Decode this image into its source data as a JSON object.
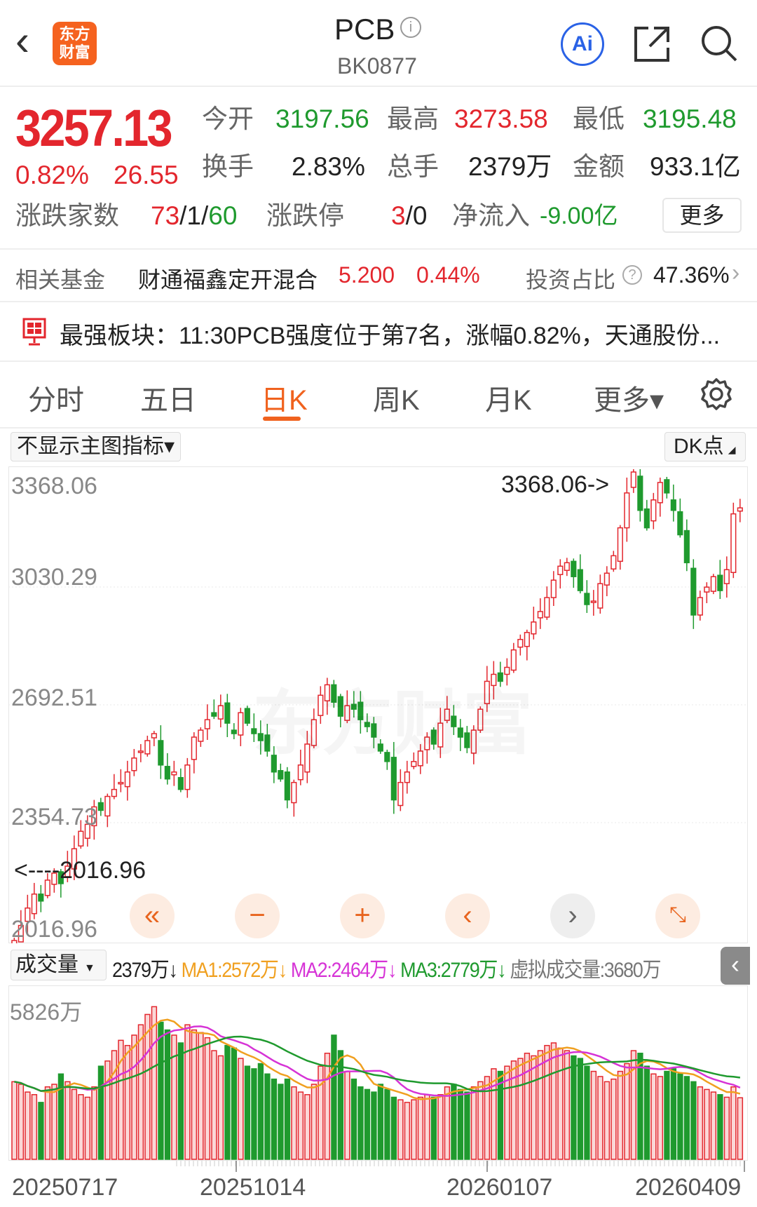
{
  "header": {
    "title": "PCB",
    "code": "BK0877",
    "logo_text": "东方财富",
    "ai_label": "Ai",
    "icons": [
      "back-icon",
      "info-icon",
      "ai-icon",
      "share-icon",
      "search-icon"
    ]
  },
  "quote": {
    "price": "3257.13",
    "change_pct": "0.82%",
    "change": "26.55",
    "open_label": "今开",
    "open": "3197.56",
    "high_label": "最高",
    "high": "3273.58",
    "low_label": "最低",
    "low": "3195.48",
    "turnover_label": "换手",
    "turnover": "2.83%",
    "volume_label": "总手",
    "volume": "2379万",
    "amount_label": "金额",
    "amount": "933.1亿",
    "breadth_label": "涨跌家数",
    "breadth_up": "73",
    "breadth_flat": "/1/",
    "breadth_down": "60",
    "limit_label": "涨跌停",
    "limit_up": "3",
    "limit_down": "/0",
    "inflow_label": "净流入",
    "inflow": "-9.00亿",
    "more_label": "更多"
  },
  "fund": {
    "label": "相关基金",
    "name": "财通福鑫定开混合",
    "nav": "5.200",
    "pct": "0.44%",
    "ratio_label": "投资占比",
    "ratio": "47.36%"
  },
  "notice": {
    "text": "最强板块：11:30PCB强度位于第7名，涨幅0.82%，天通股份..."
  },
  "tabs": [
    {
      "label": "分时"
    },
    {
      "label": "五日"
    },
    {
      "label": "日K",
      "active": true
    },
    {
      "label": "周K"
    },
    {
      "label": "月K"
    },
    {
      "label": "更多▾"
    }
  ],
  "indicator": {
    "main_select": "不显示主图指标▾",
    "dk_label": "DK点"
  },
  "colors": {
    "up": "#e3262d",
    "down": "#1f9a2e",
    "accent": "#f0621e",
    "ma1": "#f0a020",
    "ma2": "#d633d6",
    "ma3": "#1f9a2e"
  },
  "volume_header": {
    "select": "成交量",
    "vol": "2379万↓",
    "ma1": "MA1:2572万↓",
    "ma2": "MA2:2464万↓",
    "ma3": "MA3:2779万↓",
    "virtual": "虚拟成交量:3680万"
  },
  "chart_data": {
    "type": "candlestick",
    "y_ticks": [
      "3368.06",
      "3030.29",
      "2692.51",
      "2354.73",
      "2016.96"
    ],
    "ylim": [
      2016.96,
      3368.06
    ],
    "max_label": "3368.06->",
    "min_label": "<----2016.96",
    "x_ticks": [
      "20250717",
      "20251014",
      "20260107",
      "20260409"
    ],
    "close": [
      2017,
      2060,
      2110,
      2150,
      2130,
      2190,
      2210,
      2180,
      2230,
      2280,
      2330,
      2350,
      2400,
      2390,
      2430,
      2450,
      2470,
      2500,
      2540,
      2560,
      2590,
      2610,
      2520,
      2480,
      2500,
      2450,
      2520,
      2600,
      2620,
      2650,
      2660,
      2690,
      2640,
      2610,
      2670,
      2640,
      2610,
      2590,
      2560,
      2500,
      2480,
      2420,
      2470,
      2520,
      2580,
      2650,
      2720,
      2750,
      2700,
      2660,
      2690,
      2680,
      2650,
      2630,
      2600,
      2560,
      2530,
      2420,
      2470,
      2500,
      2530,
      2560,
      2600,
      2580,
      2640,
      2680,
      2630,
      2600,
      2570,
      2620,
      2680,
      2760,
      2780,
      2760,
      2800,
      2850,
      2880,
      2900,
      2930,
      2960,
      3000,
      3050,
      3090,
      3100,
      3060,
      3020,
      2980,
      2990,
      3040,
      3070,
      3120,
      3200,
      3300,
      3360,
      3250,
      3200,
      3280,
      3330,
      3300,
      3250,
      3180,
      3100,
      2950,
      3000,
      3030,
      3060,
      3020,
      3080,
      3240,
      3257.13
    ],
    "volume_max_label": "5826万",
    "volume": [
      3000,
      2900,
      2600,
      2500,
      2200,
      2800,
      2900,
      3300,
      3000,
      2700,
      2500,
      2400,
      2800,
      3600,
      3800,
      4200,
      4600,
      4400,
      4800,
      5200,
      5600,
      5900,
      5300,
      5000,
      4800,
      4500,
      5200,
      5000,
      4900,
      4700,
      4200,
      4000,
      4400,
      4300,
      3900,
      3600,
      3500,
      3700,
      3300,
      3100,
      2900,
      3100,
      2800,
      2600,
      2500,
      2900,
      3600,
      4100,
      4800,
      4200,
      3400,
      3100,
      2800,
      2700,
      2600,
      2900,
      2700,
      2400,
      2300,
      2200,
      2300,
      2400,
      2500,
      2400,
      2500,
      2800,
      2900,
      2700,
      2600,
      2800,
      3000,
      3200,
      3500,
      3400,
      3600,
      3800,
      3900,
      4100,
      4000,
      4200,
      4400,
      4500,
      4300,
      4200,
      4000,
      3900,
      3600,
      3400,
      3200,
      3000,
      3100,
      3400,
      3700,
      4200,
      4100,
      3600,
      3300,
      3200,
      3400,
      3500,
      3300,
      3200,
      3000,
      2800,
      2700,
      2600,
      2500,
      2400,
      2800,
      2379
    ]
  }
}
